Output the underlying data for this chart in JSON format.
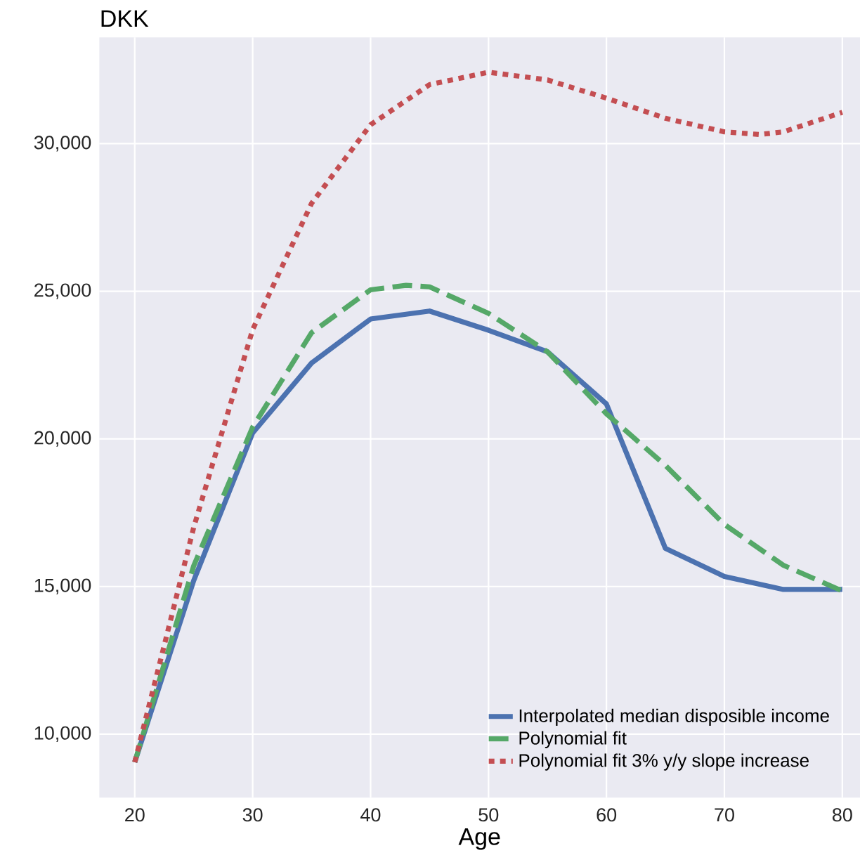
{
  "chart_data": {
    "type": "line",
    "title": "DKK",
    "xlabel": "Age",
    "xlim": [
      17,
      81.5
    ],
    "ylim": [
      7850,
      33600
    ],
    "xticks": [
      20,
      30,
      40,
      50,
      60,
      70,
      80
    ],
    "yticks": [
      {
        "value": 10000,
        "label": "10,000"
      },
      {
        "value": 15000,
        "label": "15,000"
      },
      {
        "value": 20000,
        "label": "20,000"
      },
      {
        "value": 25000,
        "label": "25,000"
      },
      {
        "value": 30000,
        "label": "30,000"
      }
    ],
    "grid": true,
    "legend": "bottom right",
    "marker": "none",
    "series": [
      {
        "name": "Interpolated median disposible income",
        "color": "#4c72b0",
        "line_style": "solid",
        "x": [
          20,
          25,
          30,
          35,
          40,
          45,
          50,
          55,
          60,
          65,
          70,
          75,
          80
        ],
        "values": [
          9050,
          15200,
          20200,
          22570,
          24060,
          24330,
          23680,
          22950,
          21180,
          16290,
          15340,
          14900,
          14900
        ]
      },
      {
        "name": "Polynomial fit",
        "color": "#55a868",
        "line_style": "dashed",
        "x": [
          20,
          25,
          30,
          35,
          40,
          43,
          45,
          50,
          55,
          60,
          65,
          70,
          75,
          80
        ],
        "values": [
          9050,
          15700,
          20400,
          23600,
          25050,
          25200,
          25150,
          24250,
          22950,
          20850,
          19100,
          17100,
          15720,
          14850
        ]
      },
      {
        "name": "Polynomial fit 3% y/y slope increase",
        "color": "#c44e52",
        "line_style": "dotted",
        "x": [
          20,
          22.5,
          25,
          30,
          35,
          40,
          45,
          50,
          55,
          60,
          65,
          70,
          73,
          75,
          80
        ],
        "values": [
          9050,
          13000,
          17000,
          23700,
          27980,
          30640,
          32000,
          32420,
          32160,
          31540,
          30860,
          30400,
          30310,
          30400,
          31060
        ]
      }
    ]
  }
}
